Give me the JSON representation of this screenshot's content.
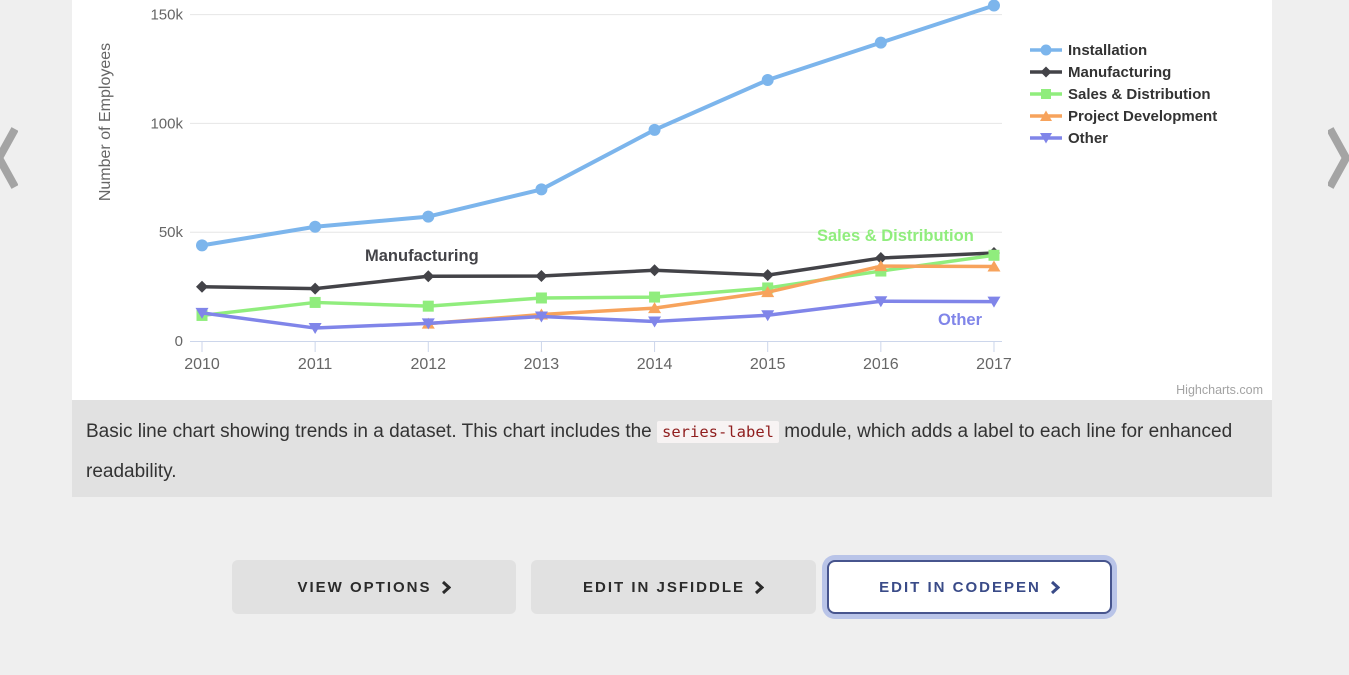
{
  "palette": {
    "page_bg": "#efefef",
    "chart_bg": "#ffffff",
    "caption_bg": "#e1e1e1",
    "grid": "#e6e6e6",
    "axis": "#ccd6eb",
    "tick_text": "#666666",
    "axis_title_text": "#666666",
    "legend_text": "#333333",
    "credits_text": "#a3a3a3",
    "code_text": "#8f1d1d",
    "button_gray_bg": "#e1e1e1",
    "button_gray_text": "#2b2b2b",
    "codepen_border": "#47558e",
    "codepen_glow": "#b9c4e8",
    "codepen_text": "#3a4b88",
    "arrow_gray": "#a4a4a4"
  },
  "chart_data": {
    "type": "line",
    "title": "",
    "xlabel": "",
    "ylabel": "Number of Employees",
    "categories": [
      "2010",
      "2011",
      "2012",
      "2013",
      "2014",
      "2015",
      "2016",
      "2017"
    ],
    "yticks": [
      {
        "value": 0,
        "label": "0"
      },
      {
        "value": 50000,
        "label": "50k"
      },
      {
        "value": 100000,
        "label": "100k"
      },
      {
        "value": 150000,
        "label": "150k"
      }
    ],
    "ylim": [
      0,
      163000
    ],
    "grid": "horizontal",
    "legend_position": "right",
    "credits": "Highcharts.com",
    "series": [
      {
        "name": "Installation",
        "color": "#7cb5ec",
        "marker": "circle",
        "line_width": 4,
        "values": [
          43934,
          52503,
          57177,
          69658,
          97031,
          119931,
          137133,
          154175
        ],
        "inline_label": {
          "visible": false
        }
      },
      {
        "name": "Manufacturing",
        "color": "#434348",
        "marker": "diamond",
        "line_width": 3.5,
        "values": [
          24916,
          24064,
          29742,
          29851,
          32490,
          30282,
          38121,
          40434
        ],
        "inline_label": {
          "visible": true,
          "x": 293,
          "y": 261
        }
      },
      {
        "name": "Sales & Distribution",
        "color": "#90ed7d",
        "marker": "square",
        "line_width": 3.5,
        "values": [
          11744,
          17722,
          16005,
          19771,
          20185,
          24377,
          32147,
          39387
        ],
        "inline_label": {
          "visible": true,
          "x": 745,
          "y": 241
        }
      },
      {
        "name": "Project Development",
        "color": "#f7a35c",
        "marker": "triangle",
        "line_width": 3.5,
        "values": [
          null,
          null,
          7988,
          12169,
          15112,
          22452,
          34400,
          34227
        ],
        "inline_label": {
          "visible": false
        }
      },
      {
        "name": "Other",
        "color": "#8085e9",
        "marker": "triangle-down",
        "line_width": 3.5,
        "values": [
          12908,
          5948,
          8105,
          11248,
          8989,
          11816,
          18274,
          18111
        ],
        "inline_label": {
          "visible": true,
          "x": 866,
          "y": 325
        }
      }
    ]
  },
  "caption": {
    "text_before": "Basic line chart showing trends in a dataset. This chart includes the ",
    "code": "series-label",
    "text_after": " module, which adds a label to each line for enhanced readability."
  },
  "buttons": [
    {
      "label": "VIEW OPTIONS"
    },
    {
      "label": "EDIT IN JSFIDDLE"
    },
    {
      "label": "EDIT IN CODEPEN"
    }
  ],
  "icons": {
    "chevron_right_glyph": "❯",
    "chevron_left_glyph": "❮"
  }
}
